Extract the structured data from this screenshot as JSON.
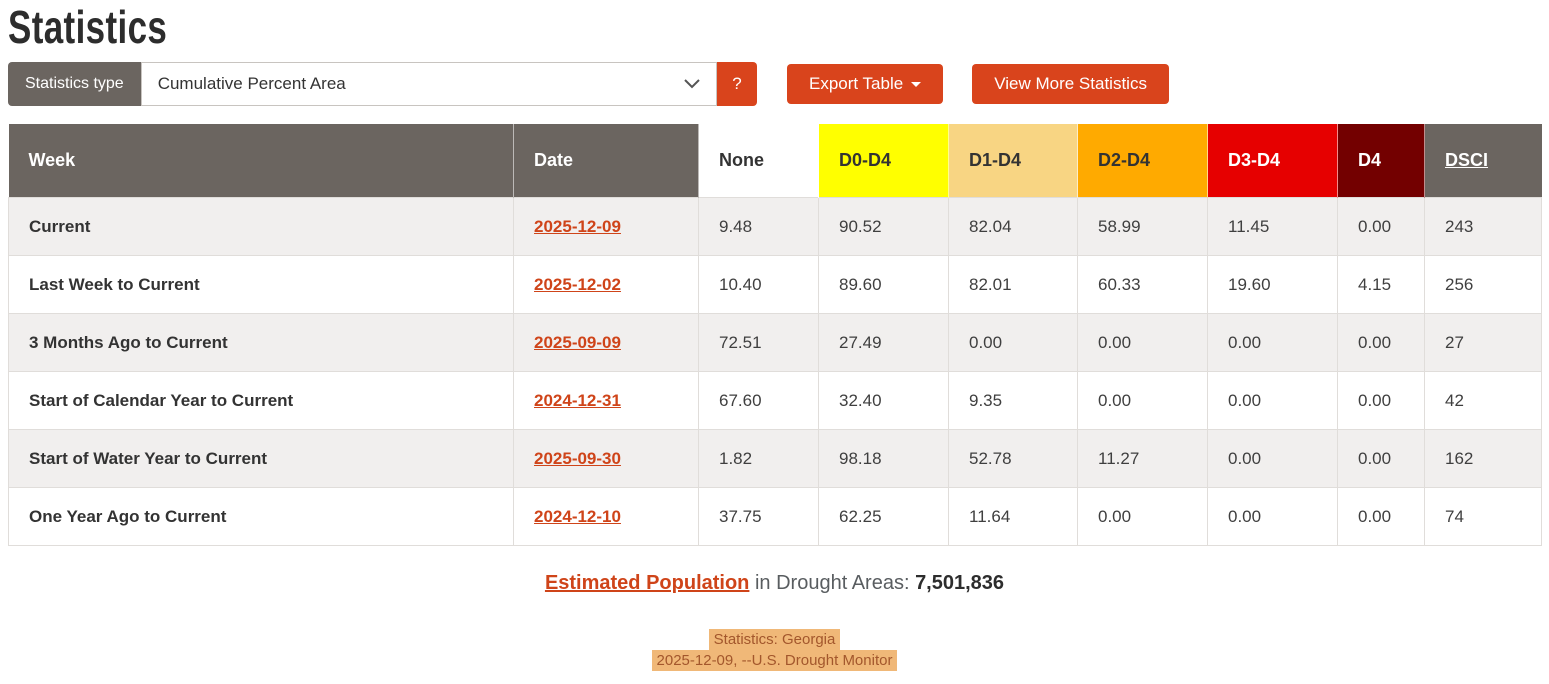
{
  "page": {
    "title": "Statistics"
  },
  "colors": {
    "accent": "#d9441c",
    "accent-link": "#cf4419",
    "header-gray": "#6b6560",
    "stripe": "#f1efee",
    "cell-border": "#e0ddda",
    "hl-bg": "#f0b878",
    "hl-fg": "#a3572c"
  },
  "controls": {
    "stats_type_label": "Statistics type",
    "stats_type_value": "Cumulative Percent Area",
    "help_label": "?",
    "export_label": "Export Table",
    "view_more_label": "View More Statistics"
  },
  "chart_data": {
    "type": "table",
    "title": "Cumulative Percent Area drought statistics",
    "columns": [
      "Week",
      "Date",
      "None",
      "D0-D4",
      "D1-D4",
      "D2-D4",
      "D3-D4",
      "D4",
      "DSCI"
    ],
    "rows": [
      [
        "Current",
        "2025-12-09",
        "9.48",
        "90.52",
        "82.04",
        "58.99",
        "11.45",
        "0.00",
        "243"
      ],
      [
        "Last Week to Current",
        "2025-12-02",
        "10.40",
        "89.60",
        "82.01",
        "60.33",
        "19.60",
        "4.15",
        "256"
      ],
      [
        "3 Months Ago to Current",
        "2025-09-09",
        "72.51",
        "27.49",
        "0.00",
        "0.00",
        "0.00",
        "0.00",
        "27"
      ],
      [
        "Start of Calendar Year to Current",
        "2024-12-31",
        "67.60",
        "32.40",
        "9.35",
        "0.00",
        "0.00",
        "0.00",
        "42"
      ],
      [
        "Start of Water Year to Current",
        "2025-09-30",
        "1.82",
        "98.18",
        "52.78",
        "11.27",
        "0.00",
        "0.00",
        "162"
      ],
      [
        "One Year Ago to Current",
        "2024-12-10",
        "37.75",
        "62.25",
        "11.64",
        "0.00",
        "0.00",
        "0.00",
        "74"
      ]
    ]
  },
  "table": {
    "columns": [
      {
        "label": "Week",
        "bg": "#6b6560",
        "fg": "#ffffff",
        "underline": false
      },
      {
        "label": "Date",
        "bg": "#6b6560",
        "fg": "#ffffff",
        "underline": false
      },
      {
        "label": "None",
        "bg": "#ffffff",
        "fg": "#333333",
        "underline": false
      },
      {
        "label": "D0-D4",
        "bg": "#ffff00",
        "fg": "#333333",
        "underline": false
      },
      {
        "label": "D1-D4",
        "bg": "#f8d583",
        "fg": "#333333",
        "underline": false
      },
      {
        "label": "D2-D4",
        "bg": "#ffaa00",
        "fg": "#333333",
        "underline": false
      },
      {
        "label": "D3-D4",
        "bg": "#e60000",
        "fg": "#ffffff",
        "underline": false
      },
      {
        "label": "D4",
        "bg": "#730000",
        "fg": "#ffffff",
        "underline": false
      },
      {
        "label": "DSCI",
        "bg": "#6b6560",
        "fg": "#ffffff",
        "underline": true
      }
    ],
    "rows": [
      {
        "week": "Current",
        "date": "2025-12-09",
        "values": [
          "9.48",
          "90.52",
          "82.04",
          "58.99",
          "11.45",
          "0.00",
          "243"
        ]
      },
      {
        "week": "Last Week to Current",
        "date": "2025-12-02",
        "values": [
          "10.40",
          "89.60",
          "82.01",
          "60.33",
          "19.60",
          "4.15",
          "256"
        ]
      },
      {
        "week": "3 Months Ago to Current",
        "date": "2025-09-09",
        "values": [
          "72.51",
          "27.49",
          "0.00",
          "0.00",
          "0.00",
          "0.00",
          "27"
        ]
      },
      {
        "week": "Start of Calendar Year to Current",
        "date": "2024-12-31",
        "values": [
          "67.60",
          "32.40",
          "9.35",
          "0.00",
          "0.00",
          "0.00",
          "42"
        ]
      },
      {
        "week": "Start of Water Year to Current",
        "date": "2025-09-30",
        "values": [
          "1.82",
          "98.18",
          "52.78",
          "11.27",
          "0.00",
          "0.00",
          "162"
        ]
      },
      {
        "week": "One Year Ago to Current",
        "date": "2024-12-10",
        "values": [
          "37.75",
          "62.25",
          "11.64",
          "0.00",
          "0.00",
          "0.00",
          "74"
        ]
      }
    ]
  },
  "population": {
    "link_label": "Estimated Population",
    "middle_text": "in Drought Areas:",
    "value": "7,501,836"
  },
  "footer": {
    "line1": "Statistics: Georgia",
    "line2": "2025-12-09, --U.S. Drought Monitor"
  }
}
